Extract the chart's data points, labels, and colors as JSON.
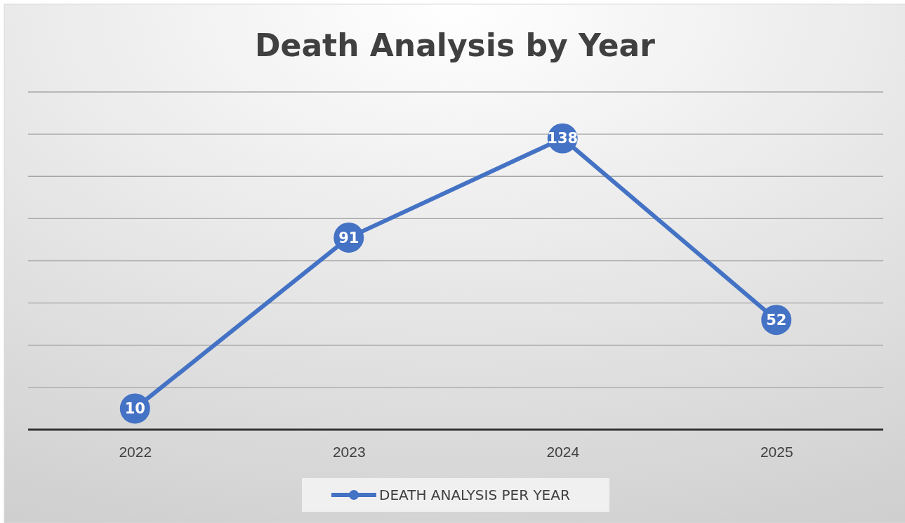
{
  "chart_data": {
    "type": "line",
    "title": "Death Analysis by Year",
    "categories": [
      "2022",
      "2023",
      "2024",
      "2025"
    ],
    "series": [
      {
        "name": "DEATH ANALYSIS PER YEAR",
        "color": "#4472c4",
        "values": [
          10,
          91,
          138,
          52
        ]
      }
    ],
    "ylim": [
      0,
      160
    ],
    "yticks": [
      {
        "value": 0,
        "label": null
      },
      {
        "value": 20,
        "label": null
      },
      {
        "value": 40,
        "label": null
      },
      {
        "value": 60,
        "label": null
      },
      {
        "value": 80,
        "label": null
      },
      {
        "value": 100,
        "label": null
      },
      {
        "value": 120,
        "label": null
      },
      {
        "value": 140,
        "label": null
      },
      {
        "value": 160,
        "label": null
      }
    ],
    "tick_labels": "x",
    "grid": "y",
    "legend": "bottom",
    "marker": "circle",
    "line_style": "solid",
    "data_labels": true
  }
}
